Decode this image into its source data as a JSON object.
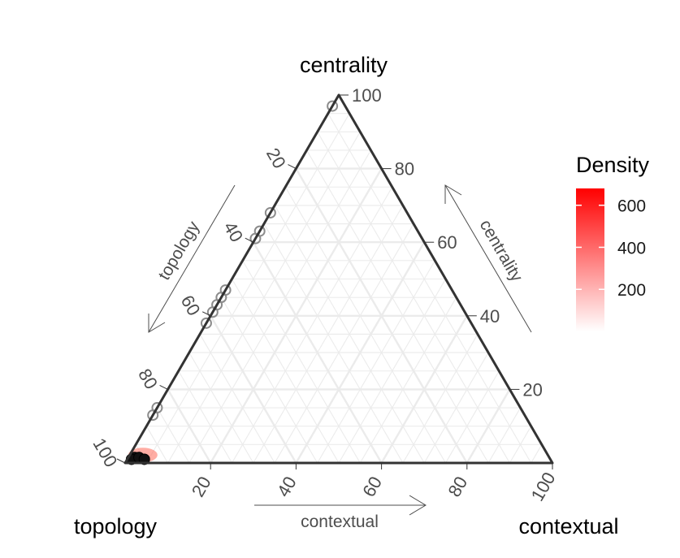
{
  "chart_data": {
    "type": "ternary-density",
    "vertices": {
      "top": "centrality",
      "left": "topology",
      "right": "contextual"
    },
    "arrow_labels": {
      "left": "topology",
      "right": "centrality",
      "bottom": "contextual"
    },
    "ticks": {
      "left": [
        "20",
        "40",
        "60",
        "80",
        "100"
      ],
      "right": [
        "20",
        "40",
        "60",
        "80",
        "100"
      ],
      "bottom": [
        "20",
        "40",
        "60",
        "80",
        "100"
      ]
    },
    "grid": true,
    "points": [
      {
        "topology": 97,
        "contextual": 1.5,
        "centrality": 1.5,
        "density": 650
      },
      {
        "topology": 98,
        "contextual": 1,
        "centrality": 1,
        "density": 600
      },
      {
        "topology": 96,
        "contextual": 2.5,
        "centrality": 1.5,
        "density": 420
      },
      {
        "topology": 95,
        "contextual": 4,
        "centrality": 1,
        "density": 250
      },
      {
        "topology": 87,
        "contextual": 0,
        "centrality": 13,
        "density": 40
      },
      {
        "topology": 85,
        "contextual": 0,
        "centrality": 15,
        "density": 40
      },
      {
        "topology": 62,
        "contextual": 0,
        "centrality": 38,
        "density": 40
      },
      {
        "topology": 59,
        "contextual": 0,
        "centrality": 41,
        "density": 40
      },
      {
        "topology": 57,
        "contextual": 0,
        "centrality": 43,
        "density": 40
      },
      {
        "topology": 55,
        "contextual": 0,
        "centrality": 45,
        "density": 40
      },
      {
        "topology": 53,
        "contextual": 0,
        "centrality": 47,
        "density": 40
      },
      {
        "topology": 39,
        "contextual": 0,
        "centrality": 61,
        "density": 40
      },
      {
        "topology": 37,
        "contextual": 0,
        "centrality": 63,
        "density": 40
      },
      {
        "topology": 32,
        "contextual": 0,
        "centrality": 68,
        "density": 40
      },
      {
        "topology": 3,
        "contextual": 0,
        "centrality": 97,
        "density": 40
      }
    ],
    "legend": {
      "title": "Density",
      "ticks": [
        "200",
        "400",
        "600"
      ],
      "range": [
        0,
        680
      ],
      "tick_values": [
        200,
        400,
        600
      ],
      "colors": [
        "#ffffff",
        "#ff0000"
      ],
      "placement": "right"
    },
    "line_color": "#333333",
    "grid_color": "#ebebeb"
  }
}
